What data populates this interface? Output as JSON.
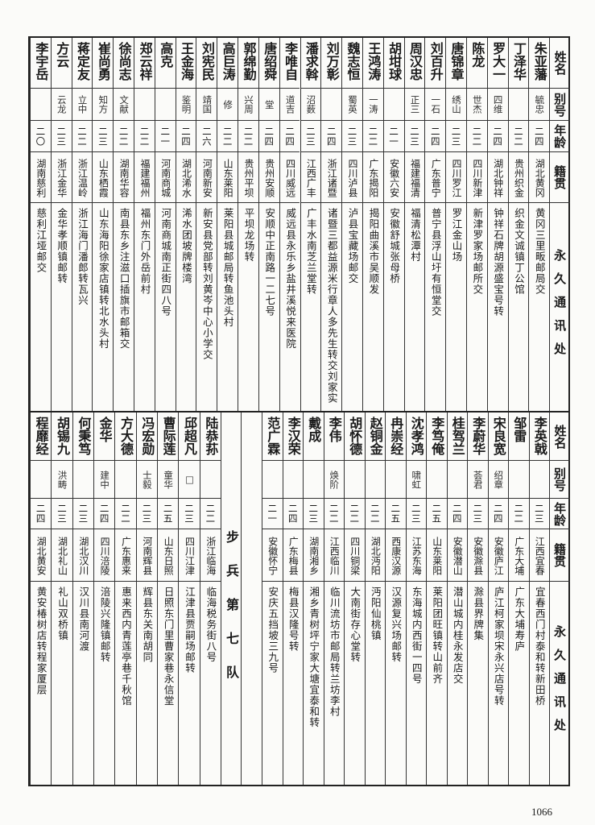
{
  "headers": {
    "name": "姓名",
    "alias": "别号",
    "age": "年龄",
    "origin": "籍贯",
    "address": "永久通讯处"
  },
  "top_rows": [
    {
      "name": "朱亚藩",
      "alias": "毓忠",
      "age": "二四",
      "origin": "湖北黄冈",
      "address": "黄冈三里畈邮局交"
    },
    {
      "name": "丁泽华",
      "alias": "",
      "age": "二二",
      "origin": "贵州织金",
      "address": "织金文诚镇丁公馆"
    },
    {
      "name": "罗大一",
      "alias": "四维",
      "age": "二四",
      "origin": "湖北钟祥",
      "address": "钟祥石牌胡源盛宝号转"
    },
    {
      "name": "陈龙",
      "alias": "世杰",
      "age": "二二",
      "origin": "四川新津",
      "address": "新津罗家场邮所交"
    },
    {
      "name": "唐锦章",
      "alias": "绣山",
      "age": "二三",
      "origin": "四川罗江",
      "address": "罗江金山场"
    },
    {
      "name": "刘百升",
      "alias": "一石",
      "age": "二四",
      "origin": "广东普宁",
      "address": "普宁县浮山圩有恒堂交"
    },
    {
      "name": "周汉忠",
      "alias": "正三",
      "age": "二三",
      "origin": "福建福清",
      "address": "福清松潭村"
    },
    {
      "name": "胡坩球",
      "alias": "",
      "age": "二一",
      "origin": "安徽六安",
      "address": "安徽舒城张母桥"
    },
    {
      "name": "王鸿涛",
      "alias": "一涛",
      "age": "二二",
      "origin": "广东揭阳",
      "address": "揭阳曲溪市吴顺发"
    },
    {
      "name": "魏志恒",
      "alias": "蜀英",
      "age": "二三",
      "origin": "四川泸县",
      "address": "泸县宝藏场邮交"
    },
    {
      "name": "刘万彰",
      "alias": "",
      "age": "二四",
      "origin": "浙江诸暨",
      "address": "诸暨三都益源米行章人多先生转交刘家实"
    },
    {
      "name": "潘求斡",
      "alias": "沼薮",
      "age": "二三",
      "origin": "江西广丰",
      "address": "广丰水南芝兰堂转"
    },
    {
      "name": "李唯自",
      "alias": "道吉",
      "age": "二四",
      "origin": "四川威远",
      "address": "威远县永乐乡盐井溪悦来医院"
    },
    {
      "name": "唐绍舜",
      "alias": "堂",
      "age": "二四",
      "origin": "贵州安顺",
      "address": "安顺中正南路一二七号"
    },
    {
      "name": "郭绵勤",
      "alias": "兴周",
      "age": "二二",
      "origin": "贵州平坝",
      "address": "平坝龙场转"
    },
    {
      "name": "高巨涛",
      "alias": "修",
      "age": "二二",
      "origin": "山东莱阳",
      "address": "莱阳县城邮局转鱼池头村"
    },
    {
      "name": "刘宪民",
      "alias": "靖国",
      "age": "二六",
      "origin": "河南新安",
      "address": "新安县党部转刘黄岑中心小学交"
    },
    {
      "name": "王金海",
      "alias": "鉴明",
      "age": "二四",
      "origin": "湖北浠水",
      "address": "浠水团坡牌楼湾"
    },
    {
      "name": "高克",
      "alias": "",
      "age": "二一",
      "origin": "河南商城",
      "address": "河南商城南正街四八号"
    },
    {
      "name": "郑云祥",
      "alias": "",
      "age": "二二",
      "origin": "福建福州",
      "address": "福州东门外岳前村"
    },
    {
      "name": "徐尚志",
      "alias": "文献",
      "age": "二二",
      "origin": "湖南华容",
      "address": "南县东乡注滋口插旗市邮箱交"
    },
    {
      "name": "崔尚勇",
      "alias": "知方",
      "age": "二三",
      "origin": "山东栖霞",
      "address": "山东海阳徐家店镇转北水头村"
    },
    {
      "name": "蒋定友",
      "alias": "立中",
      "age": "二二",
      "origin": "浙江温岭",
      "address": "浙江海门潘郎转瓦兴"
    },
    {
      "name": "方云",
      "alias": "云龙",
      "age": "二三",
      "origin": "浙江金华",
      "address": "金华孝顺镇邮转"
    },
    {
      "name": "李宇岳",
      "alias": "",
      "age": "二〇",
      "origin": "湖南慈利",
      "address": "慈利江垭邮交"
    }
  ],
  "bottom_rows_right": [
    {
      "name": "李英戟",
      "alias": "",
      "age": "二三",
      "origin": "江西宜春",
      "address": "宜春西门村泰和转新田桥"
    },
    {
      "name": "邹雷",
      "alias": "",
      "age": "二二",
      "origin": "广东大埔",
      "address": "广东大埔寿庐"
    },
    {
      "name": "宋良宽",
      "alias": "绍章",
      "age": "二四",
      "origin": "安徽庐江",
      "address": "庐江柯家坝宋永兴店号转"
    },
    {
      "name": "李蔚华",
      "alias": "荟君",
      "age": "二三",
      "origin": "安徽滁县",
      "address": "滁县界牌集"
    },
    {
      "name": "桂驾兰",
      "alias": "",
      "age": "二四",
      "origin": "安徽潜山",
      "address": "潜山城内桂永发店交"
    },
    {
      "name": "李笃俺",
      "alias": "",
      "age": "二五",
      "origin": "山东莱阳",
      "address": "莱阳团旺镇转山前齐"
    },
    {
      "name": "沈孝鸿",
      "alias": "啸虹",
      "age": "二三",
      "origin": "江苏东海",
      "address": "东海城内西街一四号"
    },
    {
      "name": "冉崇经",
      "alias": "",
      "age": "二五",
      "origin": "西康汉源",
      "address": "汉源复兴场邮转"
    },
    {
      "name": "赵铜金",
      "alias": "",
      "age": "二二",
      "origin": "湖北沔阳",
      "address": "沔阳仙桃镇"
    },
    {
      "name": "胡怀德",
      "alias": "",
      "age": "二二",
      "origin": "四川铜梁",
      "address": "大南街存心堂转"
    },
    {
      "name": "李伟",
      "alias": "焕阶",
      "age": "二二",
      "origin": "江西临川",
      "address": "临川流坊市邮局转兰坊李村"
    },
    {
      "name": "戴成",
      "alias": "",
      "age": "二三",
      "origin": "湖南湘乡",
      "address": "湘乡青树坪宁家大塘宜泰和转"
    },
    {
      "name": "李汉荣",
      "alias": "",
      "age": "二四",
      "origin": "广东梅县",
      "address": "梅县汉隆号转"
    },
    {
      "name": "范广霖",
      "alias": "",
      "age": "二一",
      "origin": "安徽怀宁",
      "address": "安庆五挡坡三九号"
    }
  ],
  "section_label": "步兵第七队",
  "bottom_rows_left": [
    {
      "name": "陆恭荪",
      "alias": "",
      "age": "二二",
      "origin": "浙江临海",
      "address": "临海税务街八号"
    },
    {
      "name": "邱超凡",
      "alias": "□",
      "age": "二三",
      "origin": "四川江津",
      "address": "江津县贾嗣场邮转"
    },
    {
      "name": "曹际莲",
      "alias": "童华",
      "age": "二五",
      "origin": "山东日照",
      "address": "日照东门里曹家巷永信堂"
    },
    {
      "name": "冯宏勋",
      "alias": "士毅",
      "age": "二三",
      "origin": "河南辉县",
      "address": "辉县东关南胡同"
    },
    {
      "name": "方大德",
      "alias": "",
      "age": "二二",
      "origin": "广东惠来",
      "address": "惠来西内青莲亭巷千秋馆"
    },
    {
      "name": "金华",
      "alias": "建中",
      "age": "二四",
      "origin": "四川涪陵",
      "address": "涪陵兴隆镇邮转"
    },
    {
      "name": "何秉笃",
      "alias": "",
      "age": "二三",
      "origin": "湖北汉川",
      "address": "汉川县南河渡"
    },
    {
      "name": "胡锡九",
      "alias": "洪畴",
      "age": "二三",
      "origin": "湖北礼山",
      "address": "礼山双桥镇"
    },
    {
      "name": "程靡经",
      "alias": "",
      "age": "二四",
      "origin": "湖北黄安",
      "address": "黄安椿树店转程家厦层"
    }
  ],
  "page_number": "1066"
}
